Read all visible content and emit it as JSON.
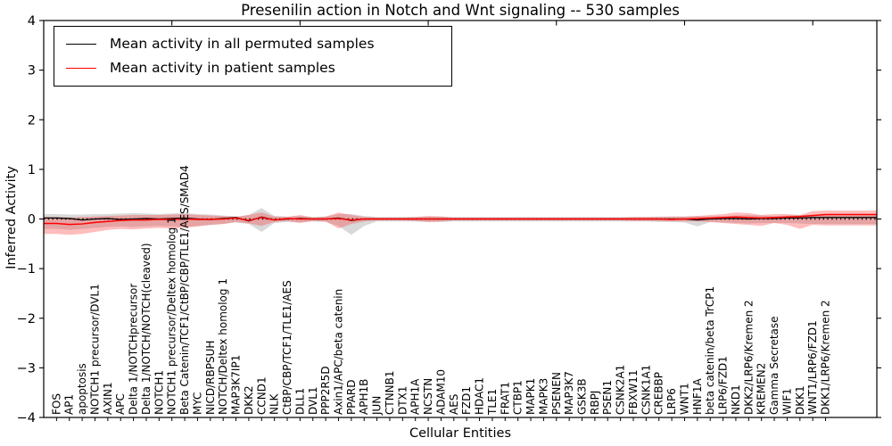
{
  "figure": {
    "title": "Presenilin action in Notch and Wnt signaling -- 530 samples",
    "xlabel": "Cellular Entities",
    "ylabel": "Inferred Activity"
  },
  "legend": {
    "items": [
      {
        "label": "Mean activity in all permuted samples",
        "color": "#000000"
      },
      {
        "label": "Mean activity in patient samples",
        "color": "#ff0000"
      }
    ]
  },
  "colors": {
    "permuted_line": "#000000",
    "patient_line": "#ff0000",
    "permuted_band": "#888888",
    "patient_band": "#ff3333",
    "frame": "#000000",
    "background": "#ffffff"
  },
  "chart_data": {
    "type": "line",
    "title": "Presenilin action in Notch and Wnt signaling -- 530 samples",
    "xlabel": "Cellular Entities",
    "ylabel": "Inferred Activity",
    "xlim": [
      0,
      65
    ],
    "ylim": [
      -4,
      4
    ],
    "yticks": [
      -4,
      -3,
      -2,
      -1,
      0,
      1,
      2,
      3,
      4
    ],
    "xticks": [
      10,
      20,
      30,
      40,
      50,
      60
    ],
    "grid": false,
    "legend_position": "upper left",
    "categories": [
      "FOS",
      "AP1",
      "apoptosis",
      "NOTCH1 precursor/DVL1",
      "AXIN1",
      "APC",
      "Delta 1/NOTCHprecursor",
      "Delta 1/NOTCH/NOTCH(cleaved)",
      "NOTCH1",
      "NOTCH1 precursor/Deltex homolog 1",
      "Beta Catenin/TCF1/CtBP/CBP/TLE1/AES/SMAD4",
      "MYC",
      "NICD/RBPSUH",
      "NOTCH/Deltex homolog 1",
      "MAP3K7IP1",
      "DKK2",
      "CCND1",
      "NLK",
      "CtBP/CBP/TCF1/TLE1/AES",
      "DLL1",
      "DVL1",
      "PPP2R5D",
      "Axin1/APC/beta catenin",
      "PPARD",
      "APH1B",
      "JUN",
      "CTNNB1",
      "DTX1",
      "APH1A",
      "NCSTN",
      "ADAM10",
      "AES",
      "FZD1",
      "HDAC1",
      "TLE1",
      "FRAT1",
      "CTBP1",
      "MAPK1",
      "MAPK3",
      "PSENEN",
      "MAP3K7",
      "GSK3B",
      "RBPJ",
      "PSEN1",
      "CSNK2A1",
      "FBXW11",
      "CSNK1A1",
      "CREBBP",
      "LRP6",
      "WNT1",
      "HNF1A",
      "beta catenin/beta TrCP1",
      "LRP6/FZD1",
      "NKD1",
      "DKK2/LRP6/Kremen 2",
      "KREMEN2",
      "Gamma Secretase",
      "WIF1",
      "DKK1",
      "WNT1/LRP6/FZD1",
      "DKK1/LRP6/Kremen 2"
    ],
    "series": [
      {
        "name": "Mean activity in all permuted samples",
        "color": "#000000",
        "width": 1.3,
        "values": [
          0.02,
          0.01,
          -0.02,
          0,
          0.01,
          -0.01,
          0,
          0.01,
          0,
          0.01,
          0.02,
          0,
          -0.01,
          0.01,
          0.03,
          -0.04,
          0.04,
          -0.02,
          0,
          0.01,
          0,
          0,
          0.02,
          -0.03,
          0,
          0,
          0,
          0,
          0,
          0,
          0,
          0,
          0,
          0,
          0,
          0,
          0,
          0,
          0,
          0,
          0,
          0,
          0,
          0,
          0,
          0,
          0,
          0,
          0,
          0,
          -0.02,
          0,
          0.01,
          0.01,
          0,
          0.01,
          0.01,
          0.02,
          0.02,
          0.03,
          0.03
        ]
      },
      {
        "name": "Mean activity in patient samples",
        "color": "#ff0000",
        "width": 1.5,
        "values": [
          -0.09,
          -0.11,
          -0.1,
          -0.07,
          -0.05,
          -0.03,
          -0.02,
          -0.02,
          -0.01,
          -0.01,
          0,
          -0.01,
          -0.01,
          0,
          0.02,
          -0.03,
          0.03,
          -0.02,
          0.01,
          0,
          0,
          0,
          0.01,
          -0.02,
          0,
          0,
          0,
          0,
          0,
          0,
          0,
          0,
          0,
          0,
          0,
          0,
          0,
          0,
          0,
          0,
          0,
          0,
          0,
          0,
          0,
          0,
          0,
          0,
          -0.01,
          0,
          0.01,
          0.02,
          0.03,
          0.04,
          0.03,
          0.02,
          0.03,
          0.04,
          0.05,
          0.07,
          0.09
        ]
      }
    ],
    "bands": [
      {
        "name": "permuted-range",
        "color": "#888888",
        "opacity": 0.32,
        "upper": [
          0.1,
          0.09,
          0.09,
          0.1,
          0.1,
          0.11,
          0.12,
          0.11,
          0.1,
          0.11,
          0.12,
          0.1,
          0.09,
          0.07,
          0.05,
          0.08,
          0.22,
          0.06,
          0.05,
          0.06,
          0.04,
          0.05,
          0.1,
          0.1,
          0.06,
          0.04,
          0.04,
          0.04,
          0.04,
          0.05,
          0.05,
          0.04,
          0.04,
          0.04,
          0.04,
          0.04,
          0.04,
          0.04,
          0.04,
          0.04,
          0.04,
          0.04,
          0.04,
          0.04,
          0.04,
          0.04,
          0.04,
          0.05,
          0.05,
          0.05,
          0.06,
          0.05,
          0.06,
          0.07,
          0.08,
          0.07,
          0.06,
          0.07,
          0.08,
          0.08,
          0.09
        ],
        "lower": [
          -0.2,
          -0.22,
          -0.2,
          -0.18,
          -0.16,
          -0.15,
          -0.16,
          -0.15,
          -0.14,
          -0.15,
          -0.16,
          -0.14,
          -0.12,
          -0.1,
          -0.07,
          -0.1,
          -0.26,
          -0.08,
          -0.06,
          -0.07,
          -0.05,
          -0.06,
          -0.14,
          -0.32,
          -0.14,
          -0.05,
          -0.05,
          -0.05,
          -0.05,
          -0.06,
          -0.06,
          -0.05,
          -0.05,
          -0.05,
          -0.05,
          -0.05,
          -0.05,
          -0.05,
          -0.05,
          -0.05,
          -0.05,
          -0.05,
          -0.05,
          -0.05,
          -0.05,
          -0.05,
          -0.05,
          -0.06,
          -0.06,
          -0.07,
          -0.15,
          -0.06,
          -0.07,
          -0.08,
          -0.09,
          -0.08,
          -0.08,
          -0.08,
          -0.09,
          -0.1,
          -0.1
        ]
      },
      {
        "name": "patient-range",
        "color": "#ff3333",
        "opacity": 0.32,
        "upper": [
          0.04,
          0.03,
          0.04,
          0.05,
          0.06,
          0.07,
          0.08,
          0.08,
          0.08,
          0.09,
          0.1,
          0.08,
          0.07,
          0.06,
          0.04,
          0.08,
          0.13,
          0.05,
          0.04,
          0.08,
          0.03,
          0.05,
          0.13,
          0.08,
          0.04,
          0.03,
          0.03,
          0.03,
          0.04,
          0.06,
          0.05,
          0.03,
          0.03,
          0.03,
          0.03,
          0.03,
          0.03,
          0.03,
          0.03,
          0.03,
          0.03,
          0.03,
          0.03,
          0.03,
          0.03,
          0.04,
          0.04,
          0.04,
          0.05,
          0.05,
          0.06,
          0.08,
          0.1,
          0.13,
          0.12,
          0.08,
          0.1,
          0.1,
          0.08,
          0.16,
          0.17
        ],
        "lower": [
          -0.3,
          -0.32,
          -0.3,
          -0.26,
          -0.22,
          -0.2,
          -0.21,
          -0.19,
          -0.18,
          -0.19,
          -0.18,
          -0.15,
          -0.12,
          -0.1,
          -0.06,
          -0.09,
          -0.14,
          -0.06,
          -0.04,
          -0.08,
          -0.04,
          -0.05,
          -0.19,
          -0.1,
          -0.05,
          -0.03,
          -0.03,
          -0.03,
          -0.04,
          -0.06,
          -0.05,
          -0.03,
          -0.03,
          -0.03,
          -0.03,
          -0.03,
          -0.03,
          -0.03,
          -0.03,
          -0.03,
          -0.03,
          -0.03,
          -0.03,
          -0.03,
          -0.03,
          -0.04,
          -0.04,
          -0.04,
          -0.05,
          -0.05,
          -0.05,
          -0.06,
          -0.08,
          -0.1,
          -0.12,
          -0.14,
          -0.08,
          -0.12,
          -0.2,
          -0.12,
          -0.13
        ]
      }
    ],
    "zero_line": {
      "style": "dotted",
      "color": "#000000",
      "y": 0
    }
  }
}
